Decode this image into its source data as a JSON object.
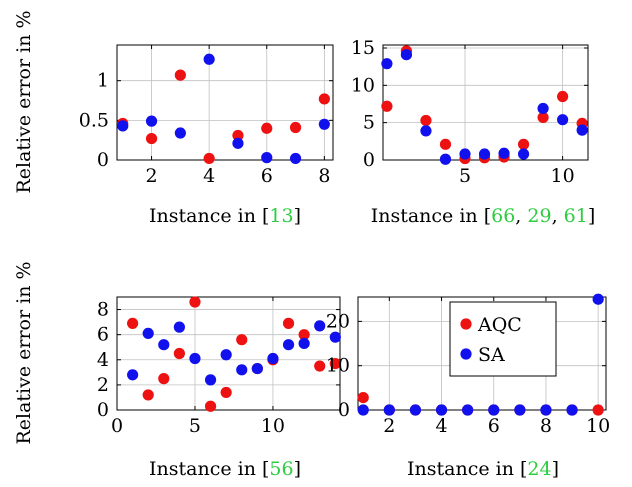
{
  "ylabel": "Relative error in %",
  "colors": {
    "AQC": "#ee1111",
    "SA": "#1111ee",
    "grid": "#c0c0c0",
    "cite": "#2ecc40"
  },
  "legend": {
    "placement": "top-center",
    "entries": [
      "AQC",
      "SA"
    ]
  },
  "chart_data": [
    {
      "type": "scatter",
      "xlabel": {
        "text": "Instance in [",
        "refs": [
          "13"
        ],
        "close": "]"
      },
      "ylabel": "Relative error in %",
      "xlim": [
        0.8,
        8.3
      ],
      "ylim": [
        0,
        1.45
      ],
      "xticks": [
        2,
        4,
        6,
        8
      ],
      "yticks": [
        0,
        0.5,
        1
      ],
      "ytick_labels": [
        "0",
        "0.5",
        "1"
      ],
      "grid": true,
      "series": [
        {
          "name": "AQC",
          "x": [
            1,
            2,
            3,
            4,
            5,
            6,
            7,
            8
          ],
          "values": [
            0.46,
            0.27,
            1.07,
            0.02,
            0.31,
            0.4,
            0.41,
            0.77
          ]
        },
        {
          "name": "SA",
          "x": [
            1,
            2,
            3,
            4,
            5,
            6,
            7,
            8
          ],
          "values": [
            0.43,
            0.49,
            0.34,
            1.27,
            0.21,
            0.03,
            0.02,
            0.45
          ]
        }
      ]
    },
    {
      "type": "scatter",
      "xlabel": {
        "text": "Instance in [",
        "refs": [
          "66",
          "29",
          "61"
        ],
        "close": "]"
      },
      "ylabel": "",
      "xlim": [
        0.8,
        11.3
      ],
      "ylim": [
        0,
        15.4
      ],
      "xticks": [
        5,
        10
      ],
      "yticks": [
        0,
        5,
        10,
        15
      ],
      "ytick_labels": [
        "0",
        "5",
        "10",
        "15"
      ],
      "grid": true,
      "series": [
        {
          "name": "AQC",
          "x": [
            1,
            2,
            3,
            4,
            5,
            6,
            7,
            8,
            9,
            10,
            11
          ],
          "values": [
            7.2,
            14.6,
            5.3,
            2.1,
            0.2,
            0.3,
            0.4,
            2.1,
            5.7,
            8.5,
            4.9
          ]
        },
        {
          "name": "SA",
          "x": [
            1,
            2,
            3,
            4,
            5,
            6,
            7,
            8,
            9,
            10,
            11
          ],
          "values": [
            12.9,
            14.1,
            3.9,
            0.1,
            0.8,
            0.8,
            0.9,
            0.8,
            6.9,
            5.4,
            4.0
          ]
        }
      ]
    },
    {
      "type": "scatter",
      "xlabel": {
        "text": "Instance in [",
        "refs": [
          "56"
        ],
        "close": "]"
      },
      "ylabel": "Relative error in %",
      "xlim": [
        0,
        14.3
      ],
      "ylim": [
        0,
        9
      ],
      "xticks": [
        0,
        5,
        10
      ],
      "yticks": [
        0,
        2,
        4,
        6,
        8
      ],
      "ytick_labels": [
        "0",
        "2",
        "4",
        "6",
        "8"
      ],
      "grid": true,
      "series": [
        {
          "name": "AQC",
          "x": [
            1,
            2,
            3,
            4,
            5,
            6,
            7,
            8,
            9,
            10,
            11,
            12,
            13,
            14
          ],
          "values": [
            6.9,
            1.2,
            2.5,
            4.5,
            8.6,
            0.3,
            1.4,
            5.6,
            3.3,
            4.0,
            6.9,
            6.0,
            3.5,
            3.7
          ]
        },
        {
          "name": "SA",
          "x": [
            1,
            2,
            3,
            4,
            5,
            6,
            7,
            8,
            9,
            10,
            11,
            12,
            13,
            14
          ],
          "values": [
            2.8,
            6.1,
            5.2,
            6.6,
            4.1,
            2.4,
            4.4,
            3.2,
            3.3,
            4.1,
            5.2,
            5.3,
            6.7,
            5.8
          ]
        }
      ]
    },
    {
      "type": "scatter",
      "xlabel": {
        "text": "Instance in [",
        "refs": [
          "24"
        ],
        "close": "]"
      },
      "ylabel": "",
      "xlim": [
        0.8,
        10.3
      ],
      "ylim": [
        0,
        25.5
      ],
      "xticks": [
        2,
        4,
        6,
        8,
        10
      ],
      "yticks": [
        0,
        10,
        20
      ],
      "ytick_labels": [
        "0",
        "10",
        "20"
      ],
      "grid": true,
      "series": [
        {
          "name": "AQC",
          "x": [
            1,
            2,
            3,
            4,
            5,
            6,
            7,
            8,
            9,
            10
          ],
          "values": [
            2.8,
            0,
            0,
            0,
            0,
            0,
            0,
            0,
            0,
            0
          ]
        },
        {
          "name": "SA",
          "x": [
            1,
            2,
            3,
            4,
            5,
            6,
            7,
            8,
            9,
            10
          ],
          "values": [
            0,
            0,
            0,
            0,
            0,
            0,
            0,
            0,
            0,
            25
          ]
        }
      ]
    }
  ]
}
